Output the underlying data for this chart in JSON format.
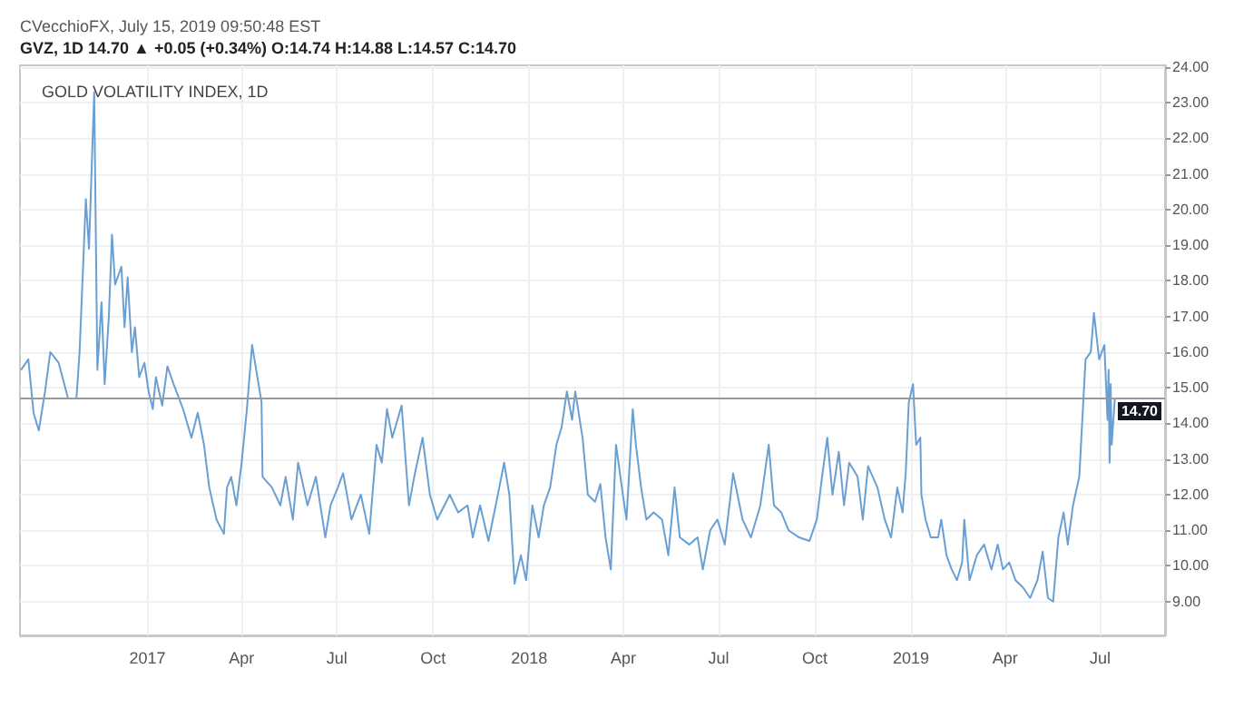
{
  "chart_data": {
    "type": "line",
    "title": "GOLD VOLATILITY INDEX, 1D",
    "annotations": [
      "CVecchioFX, July 15, 2019 09:50:48 EST",
      "GVZ, 1D 14.70 ▲ +0.05 (+0.34%) O:14.74 H:14.88 L:14.57 C:14.70"
    ],
    "x": [
      "2016-09-02",
      "2016-09-09",
      "2016-09-14",
      "2016-09-19",
      "2016-09-25",
      "2016-09-30",
      "2016-10-08",
      "2016-10-17",
      "2016-10-25",
      "2016-10-28",
      "2016-11-03",
      "2016-11-06",
      "2016-11-11",
      "2016-11-14",
      "2016-11-18",
      "2016-11-21",
      "2016-11-25",
      "2016-11-28",
      "2016-12-01",
      "2016-12-07",
      "2016-12-10",
      "2016-12-13",
      "2016-12-17",
      "2016-12-20",
      "2016-12-24",
      "2016-12-29",
      "2017-01-02",
      "2017-01-06",
      "2017-01-09",
      "2017-01-15",
      "2017-01-20",
      "2017-01-26",
      "2017-02-04",
      "2017-02-12",
      "2017-02-18",
      "2017-02-24",
      "2017-03-01",
      "2017-03-08",
      "2017-03-15",
      "2017-03-18",
      "2017-03-22",
      "2017-03-27",
      "2017-04-01",
      "2017-04-06",
      "2017-04-11",
      "2017-04-16",
      "2017-04-20",
      "2017-04-21",
      "2017-04-30",
      "2017-05-08",
      "2017-05-13",
      "2017-05-20",
      "2017-05-25",
      "2017-06-03",
      "2017-06-11",
      "2017-06-20",
      "2017-06-25",
      "2017-07-02",
      "2017-07-07",
      "2017-07-15",
      "2017-07-24",
      "2017-08-01",
      "2017-08-08",
      "2017-08-13",
      "2017-08-18",
      "2017-08-23",
      "2017-09-01",
      "2017-09-08",
      "2017-09-13",
      "2017-09-21",
      "2017-09-28",
      "2017-10-05",
      "2017-10-17",
      "2017-10-25",
      "2017-11-03",
      "2017-11-08",
      "2017-11-15",
      "2017-11-23",
      "2017-12-02",
      "2017-12-08",
      "2017-12-13",
      "2017-12-18",
      "2017-12-24",
      "2017-12-29",
      "2018-01-04",
      "2018-01-10",
      "2018-01-15",
      "2018-01-21",
      "2018-01-27",
      "2018-02-01",
      "2018-02-06",
      "2018-02-11",
      "2018-02-14",
      "2018-02-21",
      "2018-02-26",
      "2018-03-05",
      "2018-03-10",
      "2018-03-15",
      "2018-03-20",
      "2018-03-25",
      "2018-04-01",
      "2018-04-04",
      "2018-04-10",
      "2018-04-13",
      "2018-04-18",
      "2018-04-23",
      "2018-04-30",
      "2018-05-08",
      "2018-05-14",
      "2018-05-20",
      "2018-05-25",
      "2018-06-03",
      "2018-06-11",
      "2018-06-16",
      "2018-06-23",
      "2018-06-30",
      "2018-07-07",
      "2018-07-15",
      "2018-07-24",
      "2018-08-01",
      "2018-08-10",
      "2018-08-18",
      "2018-08-23",
      "2018-08-30",
      "2018-09-06",
      "2018-09-16",
      "2018-09-26",
      "2018-10-03",
      "2018-10-08",
      "2018-10-13",
      "2018-10-18",
      "2018-10-24",
      "2018-10-29",
      "2018-11-03",
      "2018-11-11",
      "2018-11-16",
      "2018-11-21",
      "2018-11-30",
      "2018-12-07",
      "2018-12-13",
      "2018-12-19",
      "2018-12-24",
      "2018-12-27",
      "2018-12-30",
      "2019-01-03",
      "2019-01-06",
      "2019-01-10",
      "2019-01-11",
      "2019-01-15",
      "2019-01-20",
      "2019-01-27",
      "2019-01-30",
      "2019-02-04",
      "2019-02-09",
      "2019-02-14",
      "2019-02-19",
      "2019-02-21",
      "2019-02-26",
      "2019-03-05",
      "2019-03-12",
      "2019-03-19",
      "2019-03-25",
      "2019-03-30",
      "2019-04-05",
      "2019-04-11",
      "2019-04-18",
      "2019-04-25",
      "2019-05-02",
      "2019-05-07",
      "2019-05-12",
      "2019-05-17",
      "2019-05-22",
      "2019-05-27",
      "2019-05-31",
      "2019-06-05",
      "2019-06-11",
      "2019-06-17",
      "2019-06-22",
      "2019-06-25",
      "2019-06-30",
      "2019-07-05",
      "2019-07-08",
      "2019-07-09",
      "2019-07-10",
      "2019-07-11",
      "2019-07-12",
      "2019-07-15"
    ],
    "values": [
      15.5,
      15.8,
      14.3,
      13.8,
      14.9,
      16.0,
      15.7,
      14.7,
      14.7,
      16.0,
      20.3,
      18.9,
      23.3,
      15.5,
      17.4,
      15.1,
      17.0,
      19.3,
      17.9,
      18.4,
      16.7,
      18.1,
      16.0,
      16.7,
      15.3,
      15.7,
      14.9,
      14.4,
      15.3,
      14.5,
      15.6,
      15.1,
      14.4,
      13.6,
      14.3,
      13.4,
      12.2,
      11.3,
      10.9,
      12.2,
      12.5,
      11.7,
      12.9,
      14.4,
      16.2,
      15.3,
      14.6,
      12.5,
      12.2,
      11.7,
      12.5,
      11.3,
      12.9,
      11.7,
      12.5,
      10.8,
      11.7,
      12.2,
      12.6,
      11.3,
      12.0,
      10.9,
      13.4,
      12.9,
      14.4,
      13.6,
      14.5,
      11.7,
      12.5,
      13.6,
      12.0,
      11.3,
      12.0,
      11.5,
      11.7,
      10.8,
      11.7,
      10.7,
      12.0,
      12.9,
      12.0,
      9.5,
      10.3,
      9.6,
      11.7,
      10.8,
      11.7,
      12.2,
      13.4,
      13.9,
      14.9,
      14.1,
      14.9,
      13.6,
      12.0,
      11.8,
      12.3,
      10.8,
      9.9,
      13.4,
      11.9,
      11.3,
      14.4,
      13.4,
      12.2,
      11.3,
      11.5,
      11.3,
      10.3,
      12.2,
      10.8,
      10.6,
      10.8,
      9.9,
      11.0,
      11.3,
      10.6,
      12.6,
      11.3,
      10.8,
      11.7,
      13.4,
      11.7,
      11.5,
      11.0,
      10.8,
      10.7,
      11.3,
      12.5,
      13.6,
      12.0,
      13.2,
      11.7,
      12.9,
      12.5,
      11.3,
      12.8,
      12.2,
      11.3,
      10.8,
      12.2,
      11.5,
      12.6,
      14.6,
      15.1,
      13.4,
      13.6,
      12.0,
      11.3,
      10.8,
      10.8,
      11.3,
      10.3,
      9.9,
      9.6,
      10.1,
      11.3,
      9.6,
      10.3,
      10.6,
      9.9,
      10.6,
      9.9,
      10.1,
      9.6,
      9.4,
      9.1,
      9.6,
      10.4,
      9.1,
      9.0,
      10.8,
      11.5,
      10.6,
      11.7,
      12.5,
      15.8,
      16.0,
      17.1,
      15.8,
      16.2,
      14.1,
      15.5,
      12.9,
      15.1,
      13.4,
      14.7
    ],
    "color": "#6a9fd4",
    "xlim": [
      "2016-09-01",
      "2019-09-01"
    ],
    "xticks": [
      {
        "value": "2017-01-01",
        "label": "2017"
      },
      {
        "value": "2017-04-01",
        "label": "Apr"
      },
      {
        "value": "2017-07-01",
        "label": "Jul"
      },
      {
        "value": "2017-10-01",
        "label": "Oct"
      },
      {
        "value": "2018-01-01",
        "label": "2018"
      },
      {
        "value": "2018-04-01",
        "label": "Apr"
      },
      {
        "value": "2018-07-01",
        "label": "Jul"
      },
      {
        "value": "2018-10-01",
        "label": "Oct"
      },
      {
        "value": "2019-01-01",
        "label": "2019"
      },
      {
        "value": "2019-04-01",
        "label": "Apr"
      },
      {
        "value": "2019-07-01",
        "label": "Jul"
      }
    ],
    "ylim": [
      8.05,
      24.05
    ],
    "yticks": [
      {
        "value": 9,
        "label": "9.00"
      },
      {
        "value": 10,
        "label": "10.00"
      },
      {
        "value": 11,
        "label": "11.00"
      },
      {
        "value": 12,
        "label": "12.00"
      },
      {
        "value": 13,
        "label": "13.00"
      },
      {
        "value": 14,
        "label": "14.00"
      },
      {
        "value": 15,
        "label": "15.00"
      },
      {
        "value": 16,
        "label": "16.00"
      },
      {
        "value": 17,
        "label": "17.00"
      },
      {
        "value": 18,
        "label": "18.00"
      },
      {
        "value": 19,
        "label": "19.00"
      },
      {
        "value": 20,
        "label": "20.00"
      },
      {
        "value": 21,
        "label": "21.00"
      },
      {
        "value": 22,
        "label": "22.00"
      },
      {
        "value": 23,
        "label": "23.00"
      },
      {
        "value": 24,
        "label": "24.00"
      }
    ],
    "ref_lines": [
      {
        "axis": "y",
        "value": 14.7,
        "label": "14.70",
        "color": "#9a9a9a"
      }
    ],
    "grid": true,
    "marker": "none",
    "line_style": "solid"
  }
}
